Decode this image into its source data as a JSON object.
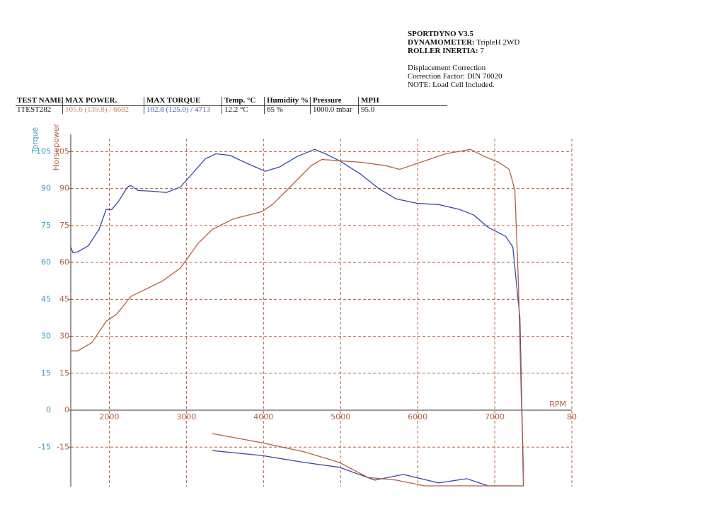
{
  "header": {
    "software": "SPORTDYNO V3.5",
    "dynamometer_label": "DYNAMOMETER:",
    "dynamometer": "TripleH 2WD",
    "inertia_label": "ROLLER INERTIA:",
    "inertia": "7",
    "notes": [
      "Displacement Correction",
      "Correction Factor: DIN 70020",
      "NOTE: Load Cell Included."
    ]
  },
  "table": {
    "columns": [
      "TEST NAME",
      "MAX POWER.",
      "MAX TORQUE",
      "Temp. °C",
      "Humidity %",
      "Pressure",
      "MPH"
    ],
    "rows": [
      [
        "1TEST282",
        "105.6 (139.8) / 6682",
        "102.8 (125.0) / 4713",
        "12.2 °C",
        "65 %",
        "1000.0 mbar",
        "95.0"
      ]
    ]
  },
  "chart_data": {
    "type": "line",
    "ylabel": "Torque",
    "y2label": "Horsepower",
    "xlabel": "RPM",
    "xlim": [
      1500,
      8000
    ],
    "xticks": [
      2000,
      3000,
      4000,
      5000,
      6000,
      7000,
      {
        "value": 8000,
        "label": "80"
      }
    ],
    "ylim": [
      -31,
      112
    ],
    "yticks": [
      -15,
      0,
      15,
      30,
      45,
      60,
      75,
      90,
      105
    ],
    "y2lim": [
      -31,
      112
    ],
    "y2ticks": [
      -15,
      0,
      15,
      30,
      45,
      60,
      75,
      90,
      105
    ],
    "grid": true,
    "series": [
      {
        "name": "Torque",
        "color": "#3a48a8",
        "axis": "y",
        "x": [
          1500,
          1528,
          1592,
          1729,
          1867,
          1959,
          2032,
          2124,
          2234,
          2280,
          2372,
          2555,
          2739,
          2922,
          3060,
          3243,
          3381,
          3564,
          3794,
          4023,
          4206,
          4436,
          4665,
          4803,
          4986,
          5261,
          5491,
          5720,
          5995,
          6271,
          6546,
          6729,
          6913,
          7142,
          7234,
          7326,
          7353,
          7372,
          7190,
          6913,
          6638,
          6271,
          5812,
          5445,
          4986,
          4528,
          3977,
          3335
        ],
        "values": [
          66.3,
          64,
          64.3,
          66.8,
          73.4,
          81.5,
          81.5,
          85,
          90.6,
          91.2,
          89.2,
          88.9,
          88.4,
          90.6,
          95.5,
          102,
          104.1,
          103.5,
          100.1,
          97,
          98.7,
          103,
          105.9,
          104.1,
          101.3,
          95.8,
          90.1,
          85.8,
          84,
          83.5,
          81.5,
          79.2,
          74.3,
          70.6,
          66.3,
          37.6,
          0.3,
          -30.7,
          -30.7,
          -30.7,
          -27.8,
          -29.5,
          -26.1,
          -28.4,
          -23.2,
          -21.2,
          -18.4,
          -16.4
        ]
      },
      {
        "name": "Horsepower",
        "color": "#b5603e",
        "axis": "y2",
        "x": [
          1500,
          1592,
          1775,
          1959,
          2096,
          2280,
          2463,
          2693,
          2922,
          3151,
          3335,
          3610,
          3977,
          4115,
          4344,
          4619,
          4757,
          4986,
          5261,
          5583,
          5766,
          6041,
          6362,
          6683,
          6867,
          7050,
          7188,
          7261,
          7307,
          7344,
          7372,
          7372,
          6087,
          5720,
          5353,
          4986,
          4528,
          3977,
          3335
        ],
        "values": [
          24.1,
          24.1,
          27.5,
          36.1,
          39,
          46.2,
          49,
          52.5,
          57.7,
          67.7,
          73.4,
          77.7,
          80.6,
          83.5,
          90.6,
          99.3,
          101.8,
          101.3,
          100.7,
          99.3,
          97.8,
          100.7,
          104.1,
          105.9,
          103,
          100.7,
          97.8,
          89.2,
          51.9,
          6,
          -22.7,
          -30.7,
          -30.7,
          -28.4,
          -27.3,
          -21.2,
          -16.9,
          -13.2,
          -9.5
        ]
      }
    ]
  }
}
